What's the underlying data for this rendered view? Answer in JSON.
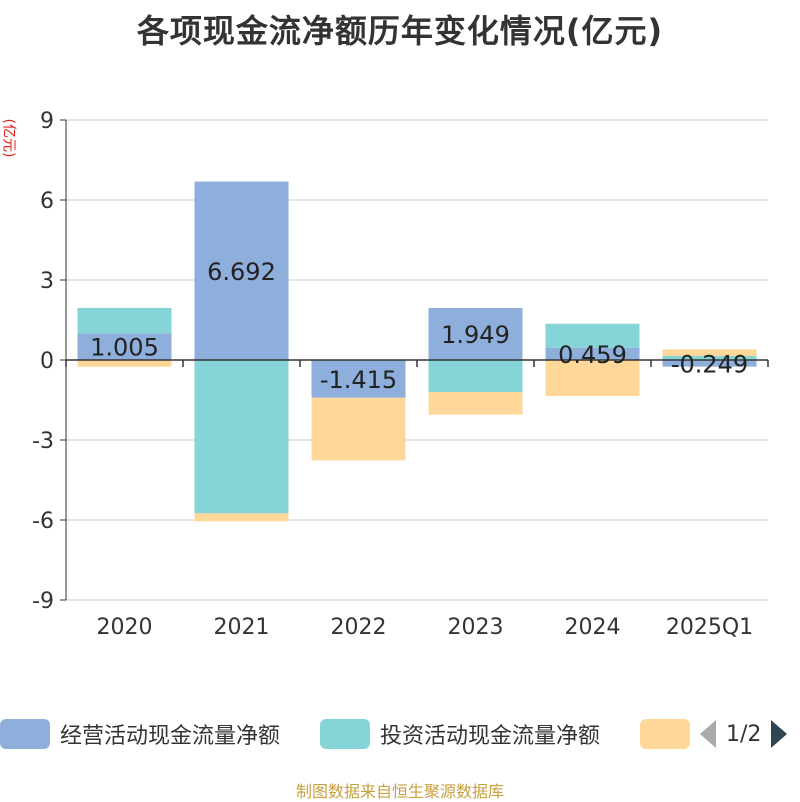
{
  "chart_data": {
    "type": "bar",
    "stacked": true,
    "title": "各项现金流净额历年变化情况(亿元)",
    "ylabel": "(亿元)",
    "categories": [
      "2020",
      "2021",
      "2022",
      "2023",
      "2024",
      "2025Q1"
    ],
    "ylim": [
      -9,
      9
    ],
    "yticks": [
      9,
      6,
      3,
      0,
      -3,
      -6,
      -9
    ],
    "series": [
      {
        "name": "经营活动现金流量净额",
        "color": "#8eaedb",
        "values": [
          1.005,
          6.692,
          -1.415,
          1.949,
          0.459,
          -0.249
        ],
        "labels": [
          "1.005",
          "6.692",
          "-1.415",
          "1.949",
          "0.459",
          "-0.249"
        ]
      },
      {
        "name": "投资活动现金流量净额",
        "color": "#85d4d7",
        "values": [
          0.95,
          -5.75,
          0.0,
          -1.2,
          0.9,
          0.15
        ]
      },
      {
        "name": "",
        "color": "#fed799",
        "values": [
          -0.25,
          -0.3,
          -2.35,
          -0.85,
          -1.35,
          0.25
        ]
      }
    ],
    "legend": {
      "position": "bottom",
      "page": "1/2"
    }
  },
  "source": "制图数据来自恒生聚源数据库"
}
